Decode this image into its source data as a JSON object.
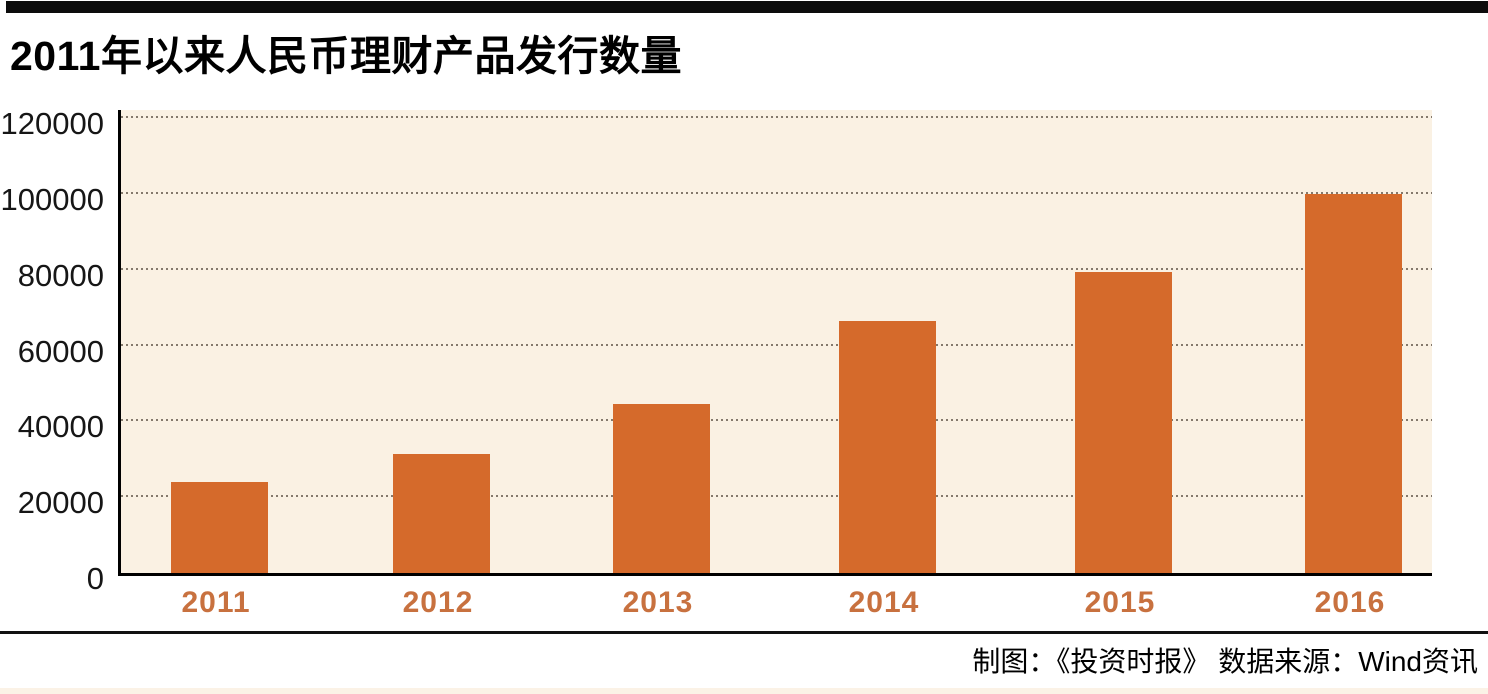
{
  "header": {
    "title": "2011年以来人民币理财产品发行数量"
  },
  "footer": {
    "credit": "制图：《投资时报》  数据来源：Wind资讯"
  },
  "chart_data": {
    "type": "bar",
    "title": "2011年以来人民币理财产品发行数量",
    "categories": [
      "2011",
      "2012",
      "2013",
      "2014",
      "2015",
      "2016"
    ],
    "values": [
      24000,
      31500,
      44500,
      66500,
      79500,
      100000
    ],
    "xlabel": "",
    "ylabel": "",
    "ylim": [
      0,
      120000
    ],
    "yticks": [
      0,
      20000,
      40000,
      60000,
      80000,
      100000,
      120000
    ],
    "grid": "horizontal-dotted",
    "legend": "none",
    "colors": {
      "bar": "#d56a2b",
      "year_label": "#c8713f",
      "plot_background": "#faf1e3",
      "axis": "#000000",
      "gridline": "#84796c",
      "top_accent": "#0c0c0c",
      "bottom_strip": "#fbf2e6"
    }
  }
}
